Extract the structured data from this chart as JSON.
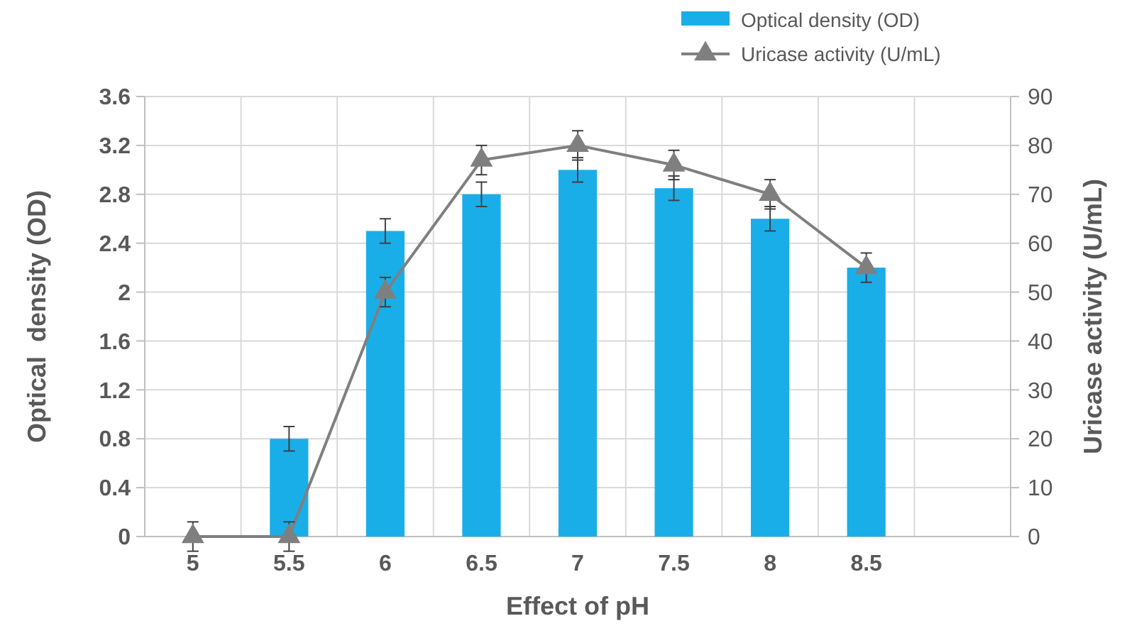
{
  "chart_data": {
    "type": "bar",
    "xlabel": "Effect of pH",
    "ylabel": "Optical  density (OD)",
    "y2label": "Uricase activity (U/mL)",
    "categories": [
      "5",
      "5.5",
      "6",
      "6.5",
      "7",
      "7.5",
      "8",
      "8.5",
      null
    ],
    "series": [
      {
        "name": "Optical density (OD)",
        "color": "#1aaee8",
        "values": [
          0,
          0.8,
          2.5,
          2.8,
          3.0,
          2.85,
          2.6,
          2.2,
          null
        ],
        "errors": [
          null,
          0.1,
          0.1,
          0.1,
          0.1,
          0.1,
          0.1,
          null,
          null
        ]
      },
      {
        "name": "Uricase activity (U/mL)",
        "type": "line",
        "axis": "y2",
        "color": "#7f7f7f",
        "marker": "triangle",
        "values": [
          0,
          0,
          50,
          77,
          80,
          76,
          70,
          55,
          null
        ],
        "errors": [
          3,
          3,
          3,
          3,
          3,
          3,
          3,
          3,
          null
        ]
      }
    ],
    "ylim": [
      0,
      3.6
    ],
    "yticks": [
      0,
      0.4,
      0.8,
      1.2,
      1.6,
      2,
      2.4,
      2.8,
      3.2,
      3.6
    ],
    "y2lim": [
      0,
      90
    ],
    "y2ticks": [
      0,
      10,
      20,
      30,
      40,
      50,
      60,
      70,
      80,
      90
    ],
    "grid": true,
    "legend": "top right"
  }
}
